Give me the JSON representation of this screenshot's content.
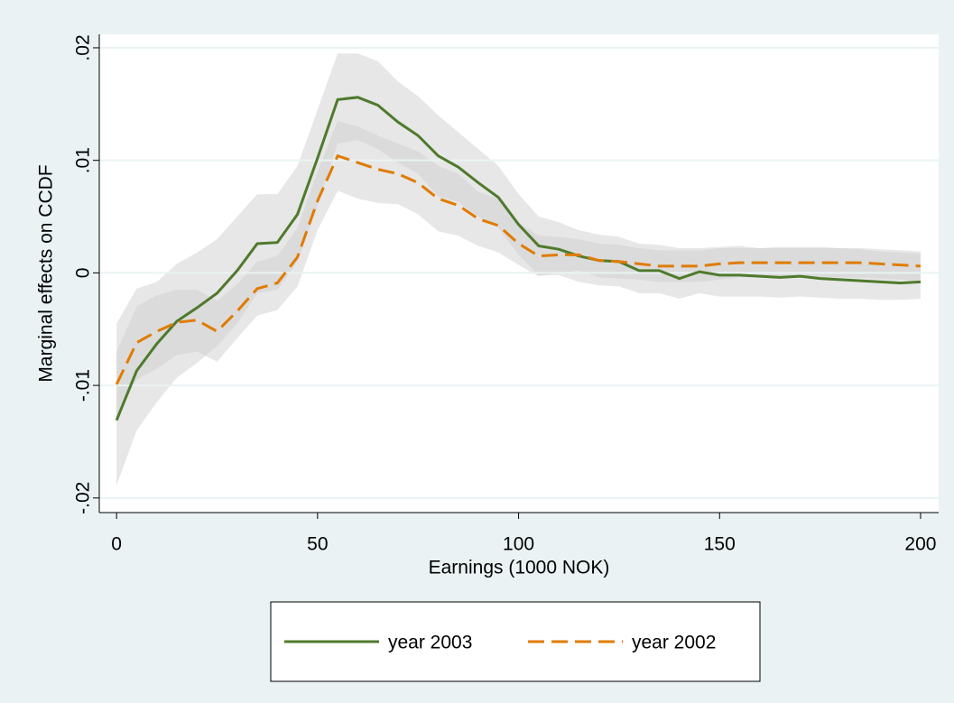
{
  "chart_data": {
    "type": "line",
    "x_label": "Earnings (1000 NOK)",
    "y_label": "Marginal effects on CCDF",
    "x": [
      0,
      5,
      10,
      15,
      20,
      25,
      30,
      35,
      40,
      45,
      50,
      55,
      60,
      65,
      70,
      75,
      80,
      85,
      90,
      95,
      100,
      105,
      110,
      115,
      120,
      125,
      130,
      135,
      140,
      145,
      150,
      155,
      160,
      165,
      170,
      175,
      180,
      185,
      190,
      195,
      200
    ],
    "xlim": [
      -4.3,
      204.5
    ],
    "xticks": [
      0,
      50,
      100,
      150,
      200
    ],
    "ylim": [
      -0.0213,
      0.0212
    ],
    "yticks": [
      {
        "value": -0.02,
        "label": "-.02"
      },
      {
        "value": -0.01,
        "label": "-.01"
      },
      0,
      {
        "value": 0.01,
        "label": ".01"
      },
      {
        "value": 0.02,
        "label": ".02"
      }
    ],
    "grid": true,
    "band_color": "#cfcfcf",
    "series": [
      {
        "name": "year 2003",
        "color": "#4f7a2c",
        "dash": "none",
        "values": [
          -0.0131,
          -0.0087,
          -0.0063,
          -0.0043,
          -0.0031,
          -0.0018,
          0.0002,
          0.0026,
          0.0027,
          0.0052,
          0.0102,
          0.0154,
          0.0156,
          0.0149,
          0.0134,
          0.0122,
          0.0104,
          0.0094,
          0.008,
          0.0067,
          0.0043,
          0.0024,
          0.0021,
          0.0015,
          0.0011,
          0.001,
          0.0002,
          0.0002,
          -0.0005,
          0.0001,
          -0.0002,
          -0.0002,
          -0.0003,
          -0.0004,
          -0.0003,
          -0.0005,
          -0.0006,
          -0.0007,
          -0.0008,
          -0.0009,
          -0.0008
        ],
        "upper": [
          -0.0045,
          -0.0014,
          -0.0008,
          0.0008,
          0.0018,
          0.003,
          0.005,
          0.007,
          0.007,
          0.0095,
          0.0145,
          0.0195,
          0.0195,
          0.0188,
          0.017,
          0.0157,
          0.014,
          0.0125,
          0.011,
          0.0095,
          0.007,
          0.005,
          0.0045,
          0.0038,
          0.0034,
          0.0032,
          0.0026,
          0.0025,
          0.0022,
          0.0022,
          0.0023,
          0.0024,
          0.0022,
          0.0023,
          0.0023,
          0.0023,
          0.0022,
          0.0021,
          0.0019,
          0.0018,
          0.0017
        ],
        "lower": [
          -0.0189,
          -0.014,
          -0.0115,
          -0.0093,
          -0.008,
          -0.0065,
          -0.0045,
          -0.0018,
          -0.0015,
          0.001,
          0.006,
          0.0115,
          0.0118,
          0.011,
          0.0098,
          0.0088,
          0.0068,
          0.0063,
          0.005,
          0.004,
          0.0016,
          -0.0002,
          -0.0002,
          -0.0008,
          -0.0011,
          -0.0012,
          -0.0018,
          -0.0018,
          -0.0023,
          -0.0018,
          -0.0021,
          -0.0021,
          -0.0021,
          -0.0022,
          -0.0021,
          -0.0022,
          -0.0023,
          -0.0023,
          -0.0024,
          -0.0024,
          -0.0023
        ]
      },
      {
        "name": "year 2002",
        "color": "#e07b00",
        "dash": "18 8",
        "values": [
          -0.0099,
          -0.0062,
          -0.0052,
          -0.0044,
          -0.0042,
          -0.0052,
          -0.0034,
          -0.0014,
          -0.0009,
          0.0014,
          0.0064,
          0.0104,
          0.0098,
          0.0092,
          0.0088,
          0.008,
          0.0066,
          0.006,
          0.0048,
          0.0042,
          0.0026,
          0.0015,
          0.0016,
          0.0016,
          0.0011,
          0.001,
          0.0008,
          0.0006,
          0.0006,
          0.0006,
          0.0008,
          0.0009,
          0.0009,
          0.0009,
          0.0009,
          0.0009,
          0.0009,
          0.0009,
          0.0008,
          0.0007,
          0.0006
        ],
        "upper": [
          -0.007,
          -0.003,
          -0.002,
          -0.0015,
          -0.0015,
          -0.0025,
          -0.001,
          0.001,
          0.0015,
          0.004,
          0.009,
          0.0135,
          0.013,
          0.0122,
          0.0115,
          0.0108,
          0.0095,
          0.0088,
          0.0072,
          0.0066,
          0.0045,
          0.0033,
          0.0032,
          0.003,
          0.0026,
          0.0025,
          0.0022,
          0.002,
          0.002,
          0.002,
          0.0022,
          0.0022,
          0.0022,
          0.0022,
          0.0022,
          0.0022,
          0.0022,
          0.0022,
          0.0021,
          0.002,
          0.0019
        ],
        "lower": [
          -0.0128,
          -0.0095,
          -0.0085,
          -0.0073,
          -0.007,
          -0.0079,
          -0.0058,
          -0.0038,
          -0.0033,
          -0.0012,
          0.0038,
          0.0073,
          0.0066,
          0.0062,
          0.0061,
          0.0052,
          0.0037,
          0.0033,
          0.0024,
          0.0018,
          0.0007,
          -0.0003,
          0,
          0.0002,
          -0.0004,
          -0.0005,
          -0.0006,
          -0.0008,
          -0.0008,
          -0.0008,
          -0.0006,
          -0.0004,
          -0.0004,
          -0.0004,
          -0.0004,
          -0.0004,
          -0.0004,
          -0.0004,
          -0.0005,
          -0.0006,
          -0.0007
        ]
      }
    ]
  }
}
